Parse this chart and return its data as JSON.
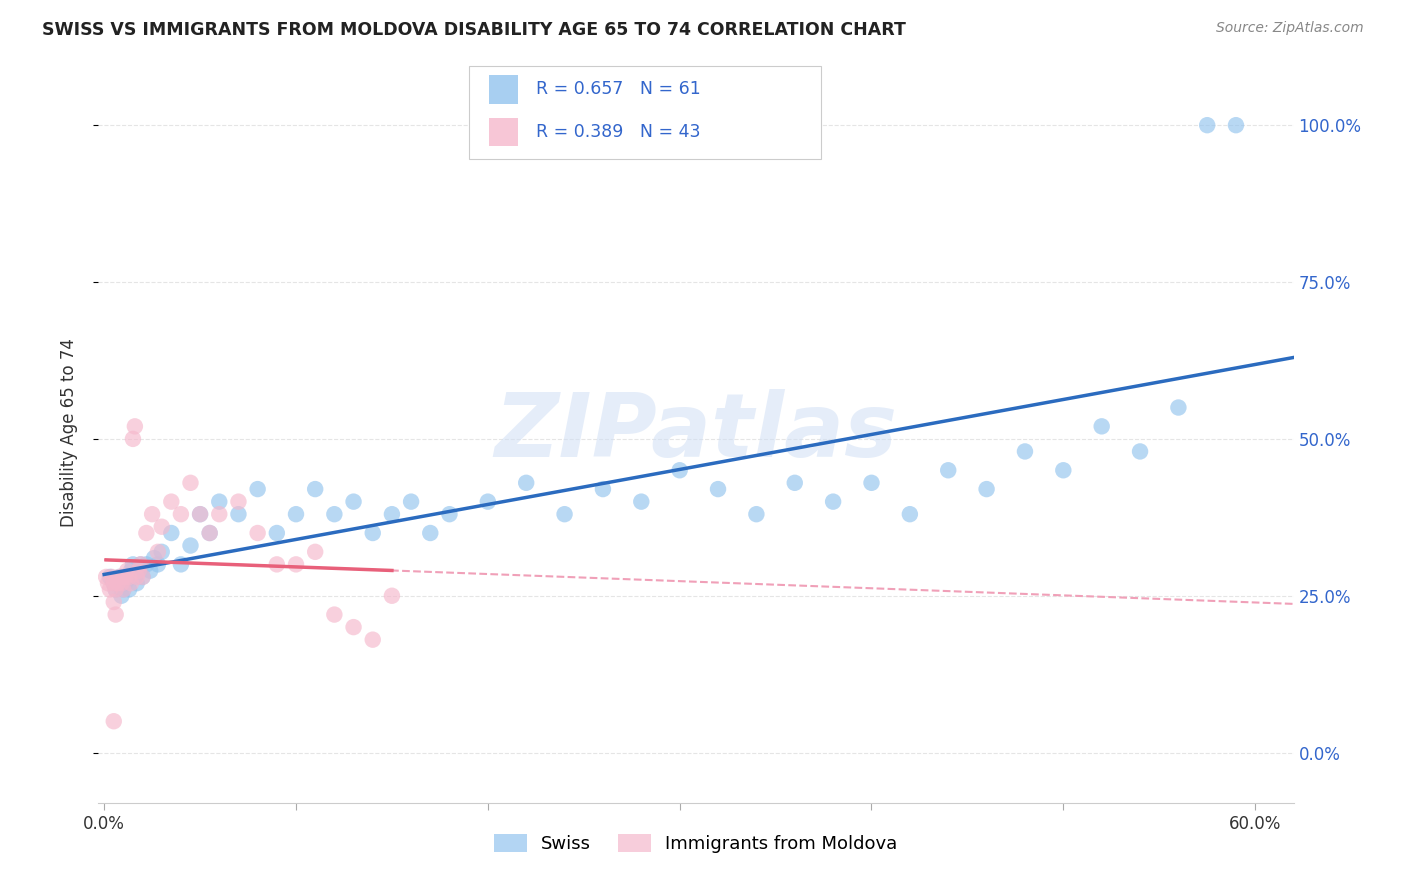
{
  "title": "SWISS VS IMMIGRANTS FROM MOLDOVA DISABILITY AGE 65 TO 74 CORRELATION CHART",
  "source": "Source: ZipAtlas.com",
  "ylabel": "Disability Age 65 to 74",
  "xlim": [
    -0.003,
    0.62
  ],
  "ylim": [
    -0.08,
    1.1
  ],
  "ytick_vals": [
    0.0,
    0.25,
    0.5,
    0.75,
    1.0
  ],
  "ytick_labels": [
    "0.0%",
    "25.0%",
    "50.0%",
    "75.0%",
    "100.0%"
  ],
  "xtick_vals": [
    0.0,
    0.1,
    0.2,
    0.3,
    0.4,
    0.5,
    0.6
  ],
  "xtick_labels": [
    "0.0%",
    "",
    "",
    "",
    "",
    "",
    "60.0%"
  ],
  "blue_scatter_color": "#93c4ee",
  "pink_scatter_color": "#f5b8cc",
  "blue_line_color": "#2b6bbf",
  "pink_line_color": "#e8607a",
  "pink_dashed_color": "#f0a0b8",
  "dashed_line_color": "#c8c8c8",
  "grid_color": "#e5e5e5",
  "watermark_color": "#d0dff5",
  "r_n_color": "#3366cc",
  "title_color": "#222222",
  "source_color": "#888888",
  "label_swiss": "Swiss",
  "label_moldova": "Immigrants from Moldova",
  "r_swiss": "0.657",
  "n_swiss": "61",
  "r_moldova": "0.389",
  "n_moldova": "43",
  "watermark_text": "ZIPatlas",
  "swiss_x": [
    0.003,
    0.005,
    0.006,
    0.007,
    0.008,
    0.009,
    0.01,
    0.011,
    0.012,
    0.013,
    0.014,
    0.015,
    0.016,
    0.017,
    0.018,
    0.019,
    0.02,
    0.022,
    0.024,
    0.026,
    0.028,
    0.03,
    0.035,
    0.04,
    0.045,
    0.05,
    0.055,
    0.06,
    0.07,
    0.08,
    0.09,
    0.1,
    0.11,
    0.12,
    0.13,
    0.14,
    0.15,
    0.16,
    0.17,
    0.18,
    0.2,
    0.22,
    0.24,
    0.26,
    0.28,
    0.3,
    0.32,
    0.34,
    0.36,
    0.38,
    0.4,
    0.42,
    0.44,
    0.46,
    0.48,
    0.5,
    0.52,
    0.54,
    0.56,
    0.575,
    0.59
  ],
  "swiss_y": [
    0.28,
    0.27,
    0.26,
    0.27,
    0.28,
    0.25,
    0.26,
    0.27,
    0.28,
    0.26,
    0.29,
    0.3,
    0.28,
    0.27,
    0.29,
    0.3,
    0.28,
    0.3,
    0.29,
    0.31,
    0.3,
    0.32,
    0.35,
    0.3,
    0.33,
    0.38,
    0.35,
    0.4,
    0.38,
    0.42,
    0.35,
    0.38,
    0.42,
    0.38,
    0.4,
    0.35,
    0.38,
    0.4,
    0.35,
    0.38,
    0.4,
    0.43,
    0.38,
    0.42,
    0.4,
    0.45,
    0.42,
    0.38,
    0.43,
    0.4,
    0.43,
    0.38,
    0.45,
    0.42,
    0.48,
    0.45,
    0.52,
    0.48,
    0.55,
    1.0,
    1.0
  ],
  "moldova_x": [
    0.001,
    0.002,
    0.003,
    0.004,
    0.005,
    0.006,
    0.007,
    0.008,
    0.009,
    0.01,
    0.011,
    0.012,
    0.013,
    0.014,
    0.015,
    0.016,
    0.017,
    0.018,
    0.019,
    0.02,
    0.022,
    0.025,
    0.028,
    0.03,
    0.035,
    0.04,
    0.045,
    0.05,
    0.055,
    0.06,
    0.07,
    0.08,
    0.09,
    0.1,
    0.11,
    0.12,
    0.13,
    0.14,
    0.15,
    0.005,
    0.006,
    0.005,
    0.01
  ],
  "moldova_y": [
    0.28,
    0.27,
    0.26,
    0.28,
    0.27,
    0.26,
    0.27,
    0.28,
    0.27,
    0.26,
    0.28,
    0.29,
    0.28,
    0.27,
    0.5,
    0.52,
    0.28,
    0.29,
    0.3,
    0.28,
    0.35,
    0.38,
    0.32,
    0.36,
    0.4,
    0.38,
    0.43,
    0.38,
    0.35,
    0.38,
    0.4,
    0.35,
    0.3,
    0.3,
    0.32,
    0.22,
    0.2,
    0.18,
    0.25,
    0.24,
    0.22,
    0.05,
    0.28
  ]
}
